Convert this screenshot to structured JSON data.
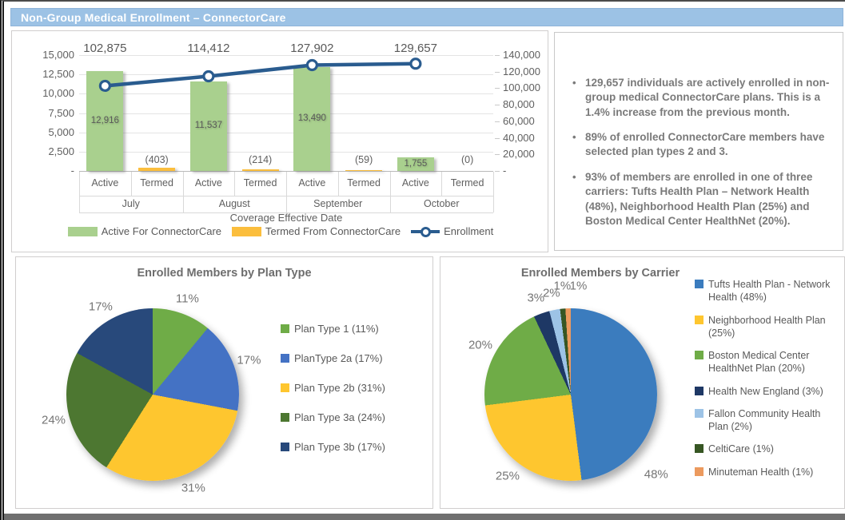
{
  "page": {
    "title_bar": "Non-Group Medical Enrollment – ConnectorCare"
  },
  "theme": {
    "title_bar_bg": "#9CC2E5",
    "title_bar_text": "#FFFFFF",
    "panel_border": "#D0CECE",
    "bottom_bar": "#6F6F6F",
    "text_gray": "#595959"
  },
  "summary_panel": {
    "bullets": [
      {
        "text": "129,657 individuals are actively enrolled in non-group medical ConnectorCare plans. This is a 1.4% increase from the previous month."
      },
      {
        "text": "89% of enrolled ConnectorCare members have selected plan types 2 and 3."
      },
      {
        "text": "93% of members are enrolled in one of three carriers: Tufts Health Plan – Network Health (48%), Neighborhood Health Plan (25%) and Boston Medical Center HealthNet (20%)."
      }
    ]
  },
  "chart_data": [
    {
      "type": "bar",
      "subtype": "combo-bar-line",
      "title": "",
      "x_axis_title": "Coverage Effective Date",
      "months": [
        "July",
        "August",
        "September",
        "October"
      ],
      "sub_categories": [
        "Active",
        "Termed"
      ],
      "left_axis": {
        "max": 15000,
        "ticks": [
          "15,000",
          "12,500",
          "10,000",
          "7,500",
          "5,000",
          "2,500",
          "-"
        ]
      },
      "right_axis": {
        "max": 140000,
        "ticks": [
          "140,000",
          "120,000",
          "100,000",
          "80,000",
          "60,000",
          "40,000",
          "20,000",
          "-"
        ]
      },
      "series": [
        {
          "name": "Active For ConnectorCare",
          "type": "bar",
          "axis": "left",
          "color": "#A9D08E",
          "values": [
            12916,
            11537,
            13490,
            1755
          ],
          "labels": [
            "12,916",
            "11,537",
            "13,490",
            "1,755"
          ]
        },
        {
          "name": "Termed From ConnectorCare",
          "type": "bar",
          "axis": "left",
          "color": "#FBBE3D",
          "values": [
            -403,
            -214,
            -59,
            0
          ],
          "labels": [
            "(403)",
            "(214)",
            "(59)",
            "(0)"
          ]
        },
        {
          "name": "Enrollment",
          "type": "line",
          "axis": "right",
          "color": "#2A5C8F",
          "values": [
            102875,
            114412,
            127902,
            129657
          ],
          "labels": [
            "102,875",
            "114,412",
            "127,902",
            "129,657"
          ]
        }
      ],
      "legend_position": "bottom",
      "grid": true
    },
    {
      "type": "pie",
      "title": "Enrolled Members by Plan Type",
      "legend_position": "right",
      "slices": [
        {
          "label": "Plan Type 1 (11%)",
          "pct": 11,
          "color": "#6FAC47",
          "callout": "11%"
        },
        {
          "label": "PlanType 2a (17%)",
          "pct": 17,
          "color": "#4472C4",
          "callout": "17%"
        },
        {
          "label": "Plan Type 2b (31%)",
          "pct": 31,
          "color": "#FEC62F",
          "callout": "31%"
        },
        {
          "label": "Plan Type 3a (24%)",
          "pct": 24,
          "color": "#4D7731",
          "callout": "24%"
        },
        {
          "label": "Plan Type 3b (17%)",
          "pct": 17,
          "color": "#28497B",
          "callout": "17%"
        }
      ]
    },
    {
      "type": "pie",
      "title": "Enrolled Members by Carrier",
      "legend_position": "right",
      "slices": [
        {
          "label": "Tufts Health Plan - Network Health (48%)",
          "pct": 48,
          "color": "#3B7CBE",
          "callout": "48%",
          "label_angle": 133,
          "label_r": 146
        },
        {
          "label": "Neighborhood Health Plan (25%)",
          "pct": 25,
          "color": "#FEC62F",
          "callout": "25%"
        },
        {
          "label": "Boston Medical Center HealthNet Plan (20%)",
          "pct": 20,
          "color": "#6FAC47",
          "callout": "20%"
        },
        {
          "label": "Health New England (3%)",
          "pct": 3,
          "color": "#1E3865",
          "callout": "3%"
        },
        {
          "label": "Fallon Community Health Plan (2%)",
          "pct": 2,
          "color": "#9DC3E6",
          "callout": "2%"
        },
        {
          "label": "CeltiCare (1%)",
          "pct": 1,
          "color": "#375623",
          "callout": "1%",
          "label_angle": 355.5,
          "label_r": 136
        },
        {
          "label": "Minuteman Health (1%)",
          "pct": 1,
          "color": "#EC9A5E",
          "callout": "1%",
          "label_angle": 4,
          "label_r": 136
        }
      ]
    }
  ]
}
